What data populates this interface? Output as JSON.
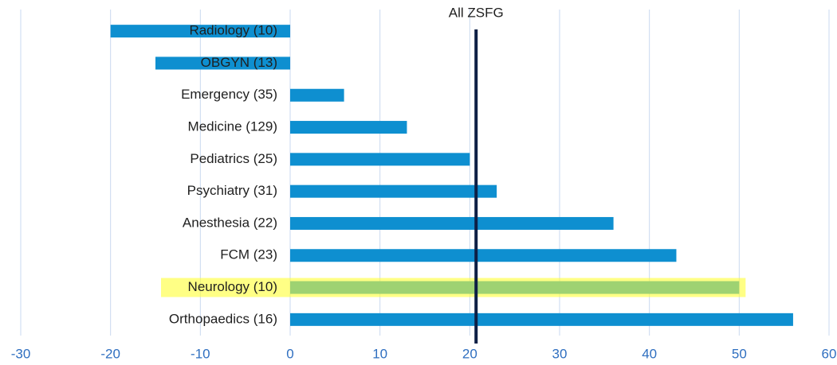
{
  "chart_data": {
    "type": "bar",
    "orientation": "horizontal",
    "categories": [
      "Radiology (10)",
      "OBGYN (13)",
      "Emergency (35)",
      "Medicine (129)",
      "Pediatrics (25)",
      "Psychiatry (31)",
      "Anesthesia (22)",
      "FCM (23)",
      "Neurology (10)",
      "Orthopaedics (16)"
    ],
    "values": [
      -20,
      -15,
      6,
      13,
      20,
      23,
      36,
      43,
      50,
      56
    ],
    "color": "#0e8fd0",
    "xlim": [
      -30,
      60
    ],
    "xticks": [
      -30,
      -20,
      -10,
      0,
      10,
      20,
      30,
      40,
      50,
      60
    ],
    "grid": true,
    "reference": {
      "label": "All ZSFG",
      "value": 20.7,
      "color": "#0d1f45"
    },
    "highlight": "Neurology (10)",
    "highlight_color": "#ffff33"
  }
}
